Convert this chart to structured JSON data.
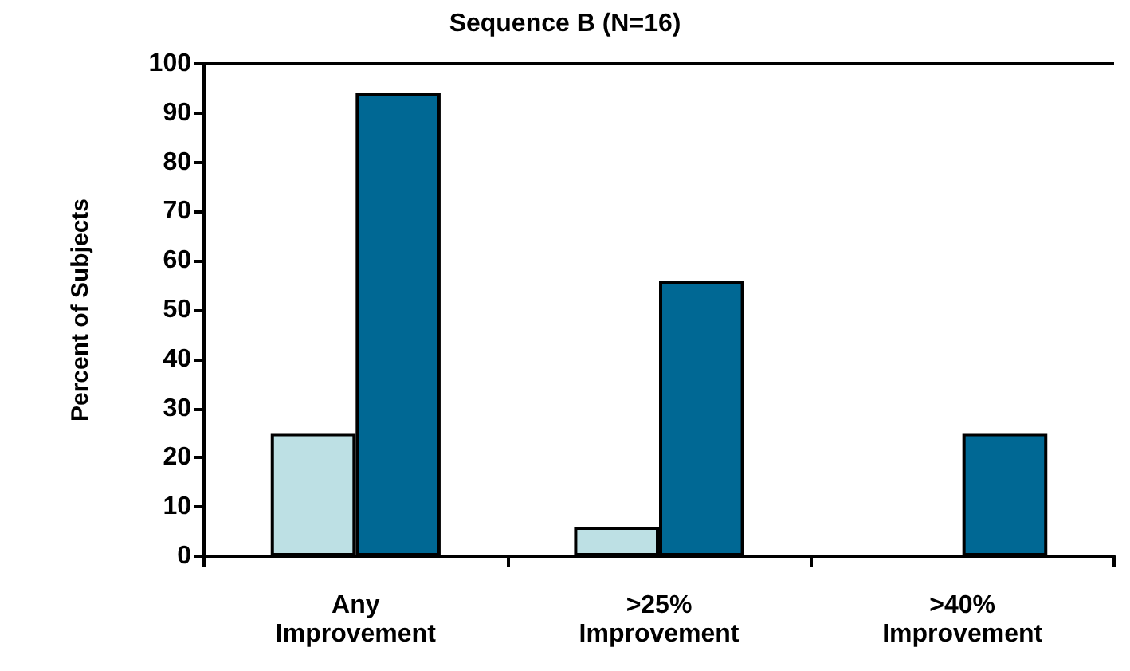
{
  "chart_data": {
    "type": "bar",
    "title": "Sequence B (N=16)",
    "ylabel": "Percent of Subjects",
    "categories": [
      "Any Improvement",
      ">25% Improvement",
      ">40% Improvement"
    ],
    "series": [
      {
        "color": "#bde0e4",
        "values": [
          25,
          6,
          0
        ]
      },
      {
        "color": "#006894",
        "values": [
          94,
          56,
          25
        ]
      }
    ],
    "ylim": [
      0,
      100
    ],
    "yticks": [
      0,
      10,
      20,
      30,
      40,
      50,
      60,
      70,
      80,
      90,
      100
    ],
    "grid": false
  }
}
